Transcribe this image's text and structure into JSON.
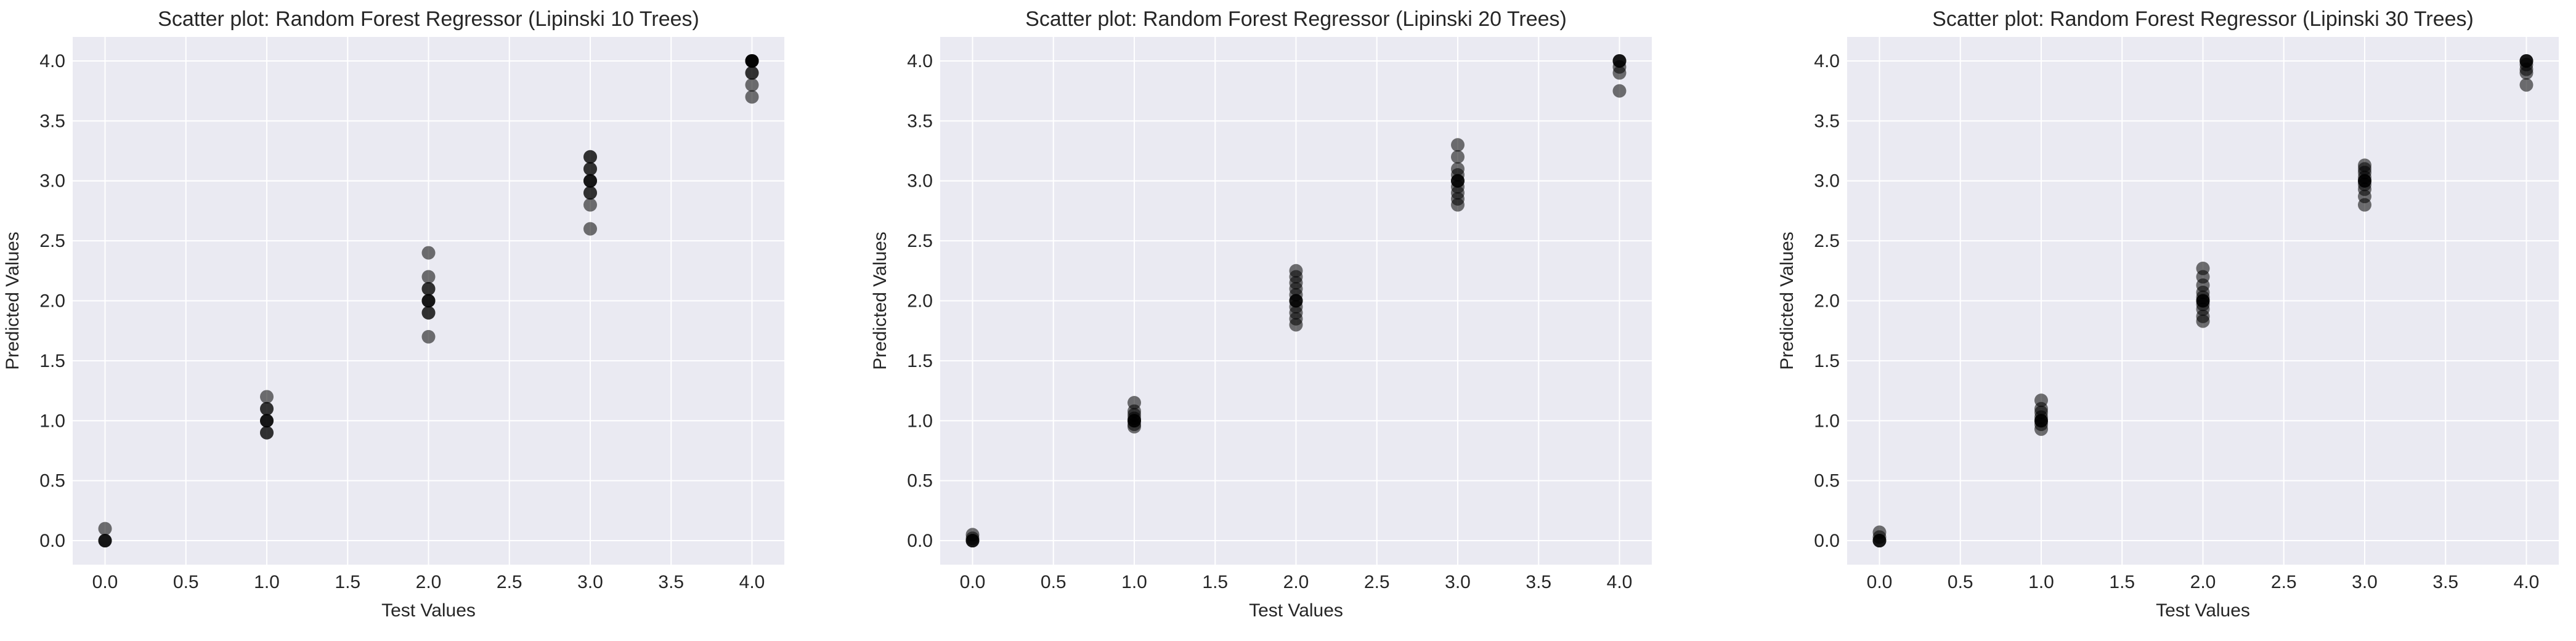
{
  "chart_data": [
    {
      "type": "scatter",
      "title": "Scatter plot: Random Forest Regressor (Lipinski 10 Trees)",
      "xlabel": "Test Values",
      "ylabel": "Predicted Values",
      "xlim": [
        -0.2,
        4.2
      ],
      "ylim": [
        -0.2,
        4.2
      ],
      "xticks": [
        "0.0",
        "0.5",
        "1.0",
        "1.5",
        "2.0",
        "2.5",
        "3.0",
        "3.5",
        "4.0"
      ],
      "yticks": [
        "0.0",
        "0.5",
        "1.0",
        "1.5",
        "2.0",
        "2.5",
        "3.0",
        "3.5",
        "4.0"
      ],
      "grid": true,
      "points": [
        [
          0,
          0.0
        ],
        [
          0,
          0.0
        ],
        [
          0,
          0.0
        ],
        [
          0,
          0.1
        ],
        [
          1,
          0.9
        ],
        [
          1,
          0.9
        ],
        [
          1,
          1.0
        ],
        [
          1,
          1.0
        ],
        [
          1,
          1.0
        ],
        [
          1,
          1.1
        ],
        [
          1,
          1.1
        ],
        [
          1,
          1.2
        ],
        [
          2,
          1.7
        ],
        [
          2,
          1.9
        ],
        [
          2,
          1.9
        ],
        [
          2,
          2.0
        ],
        [
          2,
          2.0
        ],
        [
          2,
          2.0
        ],
        [
          2,
          2.1
        ],
        [
          2,
          2.1
        ],
        [
          2,
          2.2
        ],
        [
          2,
          2.4
        ],
        [
          3,
          2.6
        ],
        [
          3,
          2.8
        ],
        [
          3,
          2.9
        ],
        [
          3,
          2.9
        ],
        [
          3,
          3.0
        ],
        [
          3,
          3.0
        ],
        [
          3,
          3.0
        ],
        [
          3,
          3.1
        ],
        [
          3,
          3.1
        ],
        [
          3,
          3.2
        ],
        [
          3,
          3.2
        ],
        [
          4,
          3.7
        ],
        [
          4,
          3.8
        ],
        [
          4,
          3.9
        ],
        [
          4,
          3.9
        ],
        [
          4,
          4.0
        ],
        [
          4,
          4.0
        ],
        [
          4,
          4.0
        ],
        [
          4,
          4.0
        ],
        [
          4,
          4.0
        ]
      ]
    },
    {
      "type": "scatter",
      "title": "Scatter plot: Random Forest Regressor (Lipinski 20 Trees)",
      "xlabel": "Test Values",
      "ylabel": "Predicted Values",
      "xlim": [
        -0.2,
        4.2
      ],
      "ylim": [
        -0.2,
        4.2
      ],
      "xticks": [
        "0.0",
        "0.5",
        "1.0",
        "1.5",
        "2.0",
        "2.5",
        "3.0",
        "3.5",
        "4.0"
      ],
      "yticks": [
        "0.0",
        "0.5",
        "1.0",
        "1.5",
        "2.0",
        "2.5",
        "3.0",
        "3.5",
        "4.0"
      ],
      "grid": true,
      "points": [
        [
          0,
          0.0
        ],
        [
          0,
          0.0
        ],
        [
          0,
          0.0
        ],
        [
          0,
          0.02
        ],
        [
          0,
          0.05
        ],
        [
          1,
          0.95
        ],
        [
          1,
          0.97
        ],
        [
          1,
          1.0
        ],
        [
          1,
          1.0
        ],
        [
          1,
          1.0
        ],
        [
          1,
          1.02
        ],
        [
          1,
          1.05
        ],
        [
          1,
          1.08
        ],
        [
          1,
          1.15
        ],
        [
          2,
          1.8
        ],
        [
          2,
          1.85
        ],
        [
          2,
          1.9
        ],
        [
          2,
          1.95
        ],
        [
          2,
          2.0
        ],
        [
          2,
          2.0
        ],
        [
          2,
          2.0
        ],
        [
          2,
          2.05
        ],
        [
          2,
          2.1
        ],
        [
          2,
          2.15
        ],
        [
          2,
          2.2
        ],
        [
          2,
          2.25
        ],
        [
          3,
          2.8
        ],
        [
          3,
          2.85
        ],
        [
          3,
          2.9
        ],
        [
          3,
          2.95
        ],
        [
          3,
          3.0
        ],
        [
          3,
          3.0
        ],
        [
          3,
          3.0
        ],
        [
          3,
          3.05
        ],
        [
          3,
          3.1
        ],
        [
          3,
          3.2
        ],
        [
          3,
          3.3
        ],
        [
          4,
          3.75
        ],
        [
          4,
          3.9
        ],
        [
          4,
          3.95
        ],
        [
          4,
          4.0
        ],
        [
          4,
          4.0
        ],
        [
          4,
          4.0
        ]
      ]
    },
    {
      "type": "scatter",
      "title": "Scatter plot: Random Forest Regressor (Lipinski 30 Trees)",
      "xlabel": "Test Values",
      "ylabel": "Predicted Values",
      "xlim": [
        -0.2,
        4.2
      ],
      "ylim": [
        -0.2,
        4.2
      ],
      "xticks": [
        "0.0",
        "0.5",
        "1.0",
        "1.5",
        "2.0",
        "2.5",
        "3.0",
        "3.5",
        "4.0"
      ],
      "yticks": [
        "0.0",
        "0.5",
        "1.0",
        "1.5",
        "2.0",
        "2.5",
        "3.0",
        "3.5",
        "4.0"
      ],
      "grid": true,
      "points": [
        [
          0,
          0.0
        ],
        [
          0,
          0.0
        ],
        [
          0,
          0.0
        ],
        [
          0,
          0.03
        ],
        [
          0,
          0.07
        ],
        [
          1,
          0.93
        ],
        [
          1,
          0.97
        ],
        [
          1,
          1.0
        ],
        [
          1,
          1.0
        ],
        [
          1,
          1.0
        ],
        [
          1,
          1.03
        ],
        [
          1,
          1.07
        ],
        [
          1,
          1.1
        ],
        [
          1,
          1.17
        ],
        [
          2,
          1.83
        ],
        [
          2,
          1.87
        ],
        [
          2,
          1.93
        ],
        [
          2,
          1.97
        ],
        [
          2,
          2.0
        ],
        [
          2,
          2.0
        ],
        [
          2,
          2.0
        ],
        [
          2,
          2.03
        ],
        [
          2,
          2.07
        ],
        [
          2,
          2.13
        ],
        [
          2,
          2.2
        ],
        [
          2,
          2.27
        ],
        [
          3,
          2.8
        ],
        [
          3,
          2.87
        ],
        [
          3,
          2.93
        ],
        [
          3,
          2.97
        ],
        [
          3,
          3.0
        ],
        [
          3,
          3.0
        ],
        [
          3,
          3.0
        ],
        [
          3,
          3.03
        ],
        [
          3,
          3.07
        ],
        [
          3,
          3.1
        ],
        [
          3,
          3.13
        ],
        [
          4,
          3.8
        ],
        [
          4,
          3.9
        ],
        [
          4,
          3.93
        ],
        [
          4,
          3.97
        ],
        [
          4,
          4.0
        ],
        [
          4,
          4.0
        ],
        [
          4,
          4.0
        ]
      ]
    }
  ],
  "colors": {
    "plot_background": "#eaeaf2",
    "grid": "#ffffff",
    "marker": "#000000",
    "text": "#262626"
  }
}
